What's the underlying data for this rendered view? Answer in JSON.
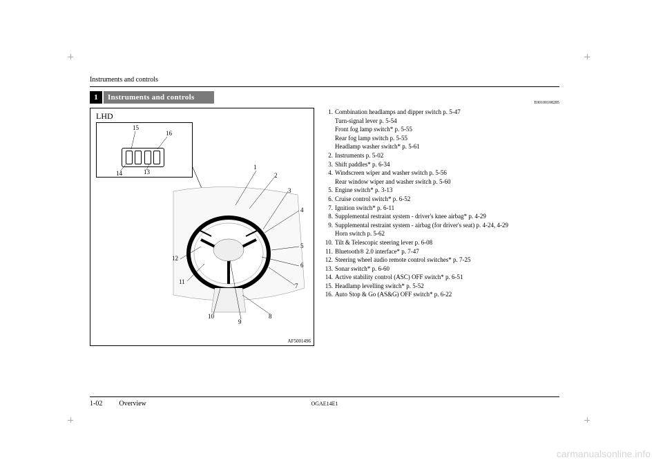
{
  "running_header": "Instruments and controls",
  "chapter_number": "1",
  "section_title": "Instruments and controls",
  "doc_code": "E00100108285",
  "figure": {
    "lhd": "LHD",
    "fig_code": "AF5001496",
    "inset_labels": {
      "n13": "13",
      "n14": "14",
      "n15": "15",
      "n16": "16"
    },
    "callouts": {
      "n1": "1",
      "n2": "2",
      "n3": "3",
      "n4": "4",
      "n5": "5",
      "n6": "6",
      "n7": "7",
      "n8": "8",
      "n9": "9",
      "n10": "10",
      "n11": "11",
      "n12": "12"
    }
  },
  "legend": [
    {
      "n": "1.",
      "t": "Combination headlamps and dipper switch p. 5-47",
      "subs": [
        "Turn-signal lever p. 5-54",
        "Front fog lamp switch* p. 5-55",
        "Rear fog lamp switch p. 5-55",
        "Headlamp washer switch* p. 5-61"
      ]
    },
    {
      "n": "2.",
      "t": "Instruments p. 5-02"
    },
    {
      "n": "3.",
      "t": "Shift paddles* p. 6-34"
    },
    {
      "n": "4.",
      "t": "Windscreen wiper and washer switch p. 5-56",
      "subs": [
        "Rear window wiper and washer switch p. 5-60"
      ]
    },
    {
      "n": "5.",
      "t": "Engine switch* p. 3-13"
    },
    {
      "n": "6.",
      "t": "Cruise control switch* p. 6-52"
    },
    {
      "n": "7.",
      "t": "Ignition switch* p. 6-11"
    },
    {
      "n": "8.",
      "t": "Supplemental restraint system - driver's knee airbag* p. 4-29"
    },
    {
      "n": "9.",
      "t": "Supplemental restraint system - airbag (for driver's seat) p. 4-24, 4-29",
      "subs": [
        "Horn switch p. 5-62"
      ]
    },
    {
      "n": "10.",
      "t": "Tilt & Telescopic steering lever p. 6-08"
    },
    {
      "n": "11.",
      "t": "Bluetooth® 2.0 interface* p. 7-47"
    },
    {
      "n": "12.",
      "t": "Steering wheel audio remote control switches* p. 7-25"
    },
    {
      "n": "13.",
      "t": "Sonar switch* p. 6-60"
    },
    {
      "n": "14.",
      "t": "Active stability control (ASC) OFF switch* p. 6-51"
    },
    {
      "n": "15.",
      "t": "Headlamp levelling switch* p. 5-52"
    },
    {
      "n": "16.",
      "t": "Auto Stop & Go (AS&G) OFF switch* p. 6-22"
    }
  ],
  "footer": {
    "page": "1-02",
    "section": "Overview",
    "code": "OGAE14E1"
  },
  "watermark": "carmanualsonline.info"
}
